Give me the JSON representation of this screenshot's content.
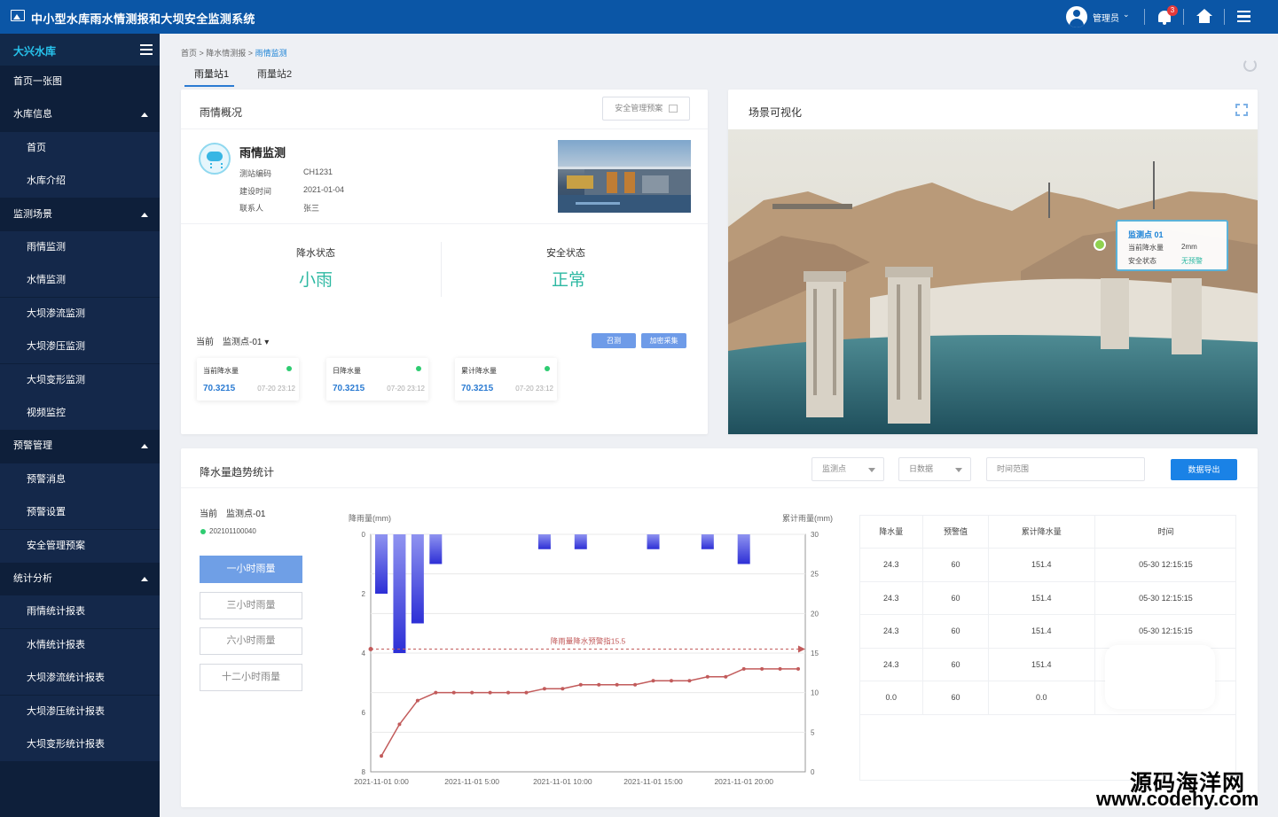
{
  "app": {
    "title": "中小型水库雨水情测报和大坝安全监测系统"
  },
  "header": {
    "user": "管理员",
    "notifications": "3"
  },
  "sidebar": {
    "reservoir": "大兴水库",
    "items": [
      {
        "label": "首页一张图",
        "type": "top"
      },
      {
        "label": "水库信息",
        "type": "group"
      },
      {
        "label": "首页",
        "type": "sub"
      },
      {
        "label": "水库介绍",
        "type": "sub"
      },
      {
        "label": "监测场景",
        "type": "group"
      },
      {
        "label": "雨情监测",
        "type": "sub"
      },
      {
        "label": "水情监测",
        "type": "sub"
      },
      {
        "label": "大坝渗流监测",
        "type": "sub"
      },
      {
        "label": "大坝渗压监测",
        "type": "sub"
      },
      {
        "label": "大坝变形监测",
        "type": "sub"
      },
      {
        "label": "视频监控",
        "type": "sub"
      },
      {
        "label": "预警管理",
        "type": "group"
      },
      {
        "label": "预警消息",
        "type": "sub"
      },
      {
        "label": "预警设置",
        "type": "sub"
      },
      {
        "label": "安全管理预案",
        "type": "sub"
      },
      {
        "label": "统计分析",
        "type": "group"
      },
      {
        "label": "雨情统计报表",
        "type": "sub"
      },
      {
        "label": "水情统计报表",
        "type": "sub"
      },
      {
        "label": "大坝渗流统计报表",
        "type": "sub"
      },
      {
        "label": "大坝渗压统计报表",
        "type": "sub"
      },
      {
        "label": "大坝变形统计报表",
        "type": "sub"
      }
    ]
  },
  "breadcrumb": {
    "home": "首页",
    "level2": "降水情测报",
    "current": "雨情监测"
  },
  "tabs": [
    "雨量站1",
    "雨量站2"
  ],
  "overview": {
    "title": "雨情概况",
    "plan_button": "安全管理预案",
    "station_title": "雨情监测",
    "code_label": "测站编码",
    "code": "CH1231",
    "date_label": "建设时间",
    "date": "2021-01-04",
    "contact_label": "联系人",
    "contact": "张三",
    "rain_status_label": "降水状态",
    "rain_status": "小雨",
    "safety_label": "安全状态",
    "safety": "正常",
    "current_label": "当前",
    "point": "监测点-01",
    "btn_start": "召测",
    "btn_collect": "加密采集",
    "cards": [
      {
        "title": "当前降水量",
        "value": "70.3215",
        "time": "07-20 23:12"
      },
      {
        "title": "日降水量",
        "value": "70.3215",
        "time": "07-20 23:12"
      },
      {
        "title": "累计降水量",
        "value": "70.3215",
        "time": "07-20 23:12"
      }
    ]
  },
  "scene": {
    "title": "场景可视化",
    "popup_title": "监测点 01",
    "popup_rain_label": "当前降水量",
    "popup_rain": "2mm",
    "popup_safe_label": "安全状态",
    "popup_safe": "无预警"
  },
  "trend": {
    "title": "降水量趋势统计",
    "sel_point": "监测点",
    "sel_type": "日数据",
    "time_placeholder": "时间范围",
    "export": "数据导出",
    "current_label": "当前",
    "point": "监测点-01",
    "station_id": "202101100040",
    "periods": [
      "一小时雨量",
      "三小时雨量",
      "六小时雨量",
      "十二小时雨量"
    ],
    "table": {
      "headers": [
        "降水量",
        "预警值",
        "累计降水量",
        "时间"
      ],
      "rows": [
        [
          "24.3",
          "60",
          "151.4",
          "05-30 12:15:15"
        ],
        [
          "24.3",
          "60",
          "151.4",
          "05-30 12:15:15"
        ],
        [
          "24.3",
          "60",
          "151.4",
          "05-30 12:15:15"
        ],
        [
          "24.3",
          "60",
          "151.4",
          ""
        ],
        [
          "0.0",
          "60",
          "0.0",
          ""
        ]
      ]
    }
  },
  "chart_data": {
    "type": "bar",
    "ylabel": "降雨量(mm)",
    "y2label": "累计雨量(mm)",
    "ylim": [
      0,
      8
    ],
    "y2lim": [
      0,
      30
    ],
    "y_ticks": [
      "0",
      "2",
      "4",
      "6",
      "8"
    ],
    "y2_ticks": [
      "30",
      "25",
      "20",
      "15",
      "10",
      "5",
      "0"
    ],
    "x_ticks": [
      "2021-11-01 0:00",
      "2021-11-01 5:00",
      "2021-11-01 10:00",
      "2021-11-01 15:00",
      "2021-11-01 20:00"
    ],
    "hours": [
      0,
      1,
      2,
      3,
      4,
      5,
      6,
      7,
      8,
      9,
      10,
      11,
      12,
      13,
      14,
      15,
      16,
      17,
      18,
      19,
      20,
      21,
      22,
      23
    ],
    "series": [
      {
        "values": [
          2.0,
          4.0,
          3.0,
          1.0,
          0,
          0,
          0,
          0,
          0,
          0.5,
          0,
          0.5,
          0,
          0,
          0,
          0.5,
          0,
          0,
          0.5,
          0,
          1.0,
          0,
          0,
          0
        ]
      },
      {
        "values": [
          2.0,
          6.0,
          9.0,
          10.0,
          10.0,
          10.0,
          10.0,
          10.0,
          10.0,
          10.5,
          10.5,
          11.0,
          11.0,
          11.0,
          11.0,
          11.5,
          11.5,
          11.5,
          12.0,
          12.0,
          13.0,
          13.0,
          13.0,
          13.0
        ]
      }
    ],
    "markline": {
      "label": "降雨量降水预警指15.5",
      "value": 15.5
    }
  }
}
